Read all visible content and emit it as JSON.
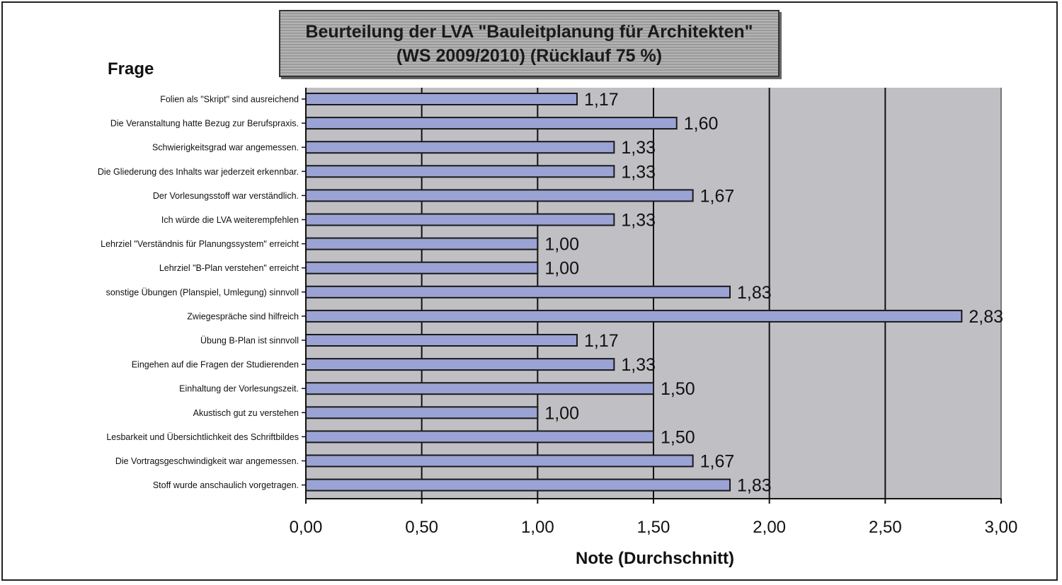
{
  "chart_data": {
    "type": "bar",
    "orientation": "horizontal",
    "title_line1": "Beurteilung der LVA \"Bauleitplanung für Architekten\"",
    "title_line2": "(WS 2009/2010) (Rücklauf 75 %)",
    "ylabel": "Frage",
    "xlabel": "Note (Durchschnitt)",
    "xlim": [
      0,
      3
    ],
    "xticks": [
      "0,00",
      "0,50",
      "1,00",
      "1,50",
      "2,00",
      "2,50",
      "3,00"
    ],
    "grid": true,
    "categories": [
      "Folien als \"Skript\" sind ausreichend",
      "Die Veranstaltung hatte Bezug zur Berufspraxis.",
      "Schwierigkeitsgrad war angemessen.",
      "Die Gliederung des Inhalts war jederzeit erkennbar.",
      "Der Vorlesungsstoff war verständlich.",
      "Ich würde die LVA weiterempfehlen",
      "Lehrziel \"Verständnis für Planungssystem\" erreicht",
      "Lehrziel \"B-Plan verstehen\" erreicht",
      "sonstige Übungen (Planspiel, Umlegung) sinnvoll",
      "Zwiegespräche sind hilfreich",
      "Übung B-Plan ist sinnvoll",
      "Eingehen auf die Fragen der Studierenden",
      "Einhaltung der Vorlesungszeit.",
      "Akustisch gut zu verstehen",
      "Lesbarkeit und Übersichtlichkeit des Schriftbildes",
      "Die Vortragsgeschwindigkeit war angemessen.",
      "Stoff wurde anschaulich vorgetragen."
    ],
    "values": [
      1.17,
      1.6,
      1.33,
      1.33,
      1.67,
      1.33,
      1.0,
      1.0,
      1.83,
      2.83,
      1.17,
      1.33,
      1.5,
      1.0,
      1.5,
      1.67,
      1.83
    ],
    "value_labels": [
      "1,17",
      "1,60",
      "1,33",
      "1,33",
      "1,67",
      "1,33",
      "1,00",
      "1,00",
      "1,83",
      "2,83",
      "1,17",
      "1,33",
      "1,50",
      "1,00",
      "1,50",
      "1,67",
      "1,83"
    ],
    "colors": {
      "bar_fill": "#9ba3d4",
      "bar_stroke": "#1a1a1a",
      "plot_bg": "#c0c0c4",
      "grid": "#111111"
    }
  }
}
